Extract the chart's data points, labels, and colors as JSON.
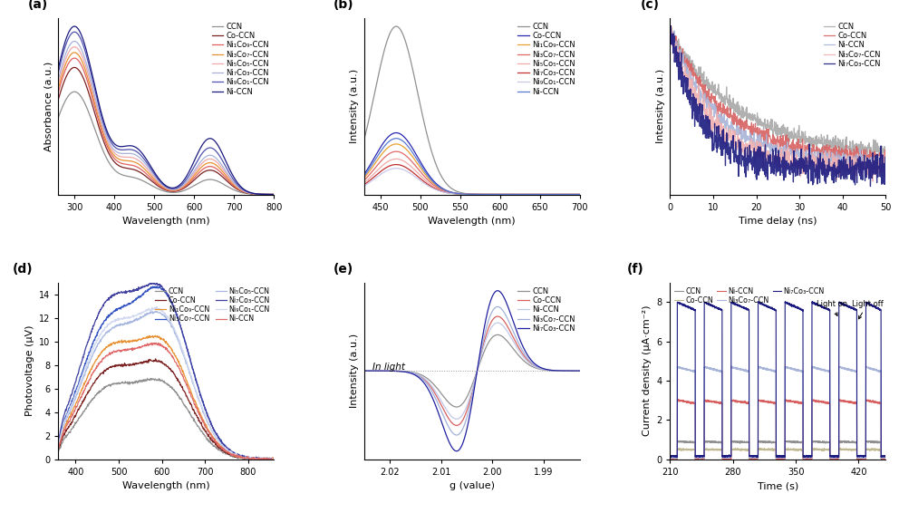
{
  "panel_labels": [
    "(a)",
    "(b)",
    "(c)",
    "(d)",
    "(e)",
    "(f)"
  ],
  "series_a": {
    "labels": [
      "CCN",
      "Co-CCN",
      "Ni₁Co₉-CCN",
      "Ni₃Co₇-CCN",
      "Ni₅Co₅-CCN",
      "Ni₇Co₃-CCN",
      "Ni₉Co₁-CCN",
      "Ni-CCN"
    ],
    "colors": [
      "#909090",
      "#7B2020",
      "#E06060",
      "#E89030",
      "#F0A8A8",
      "#A8B0D8",
      "#5050B0",
      "#1A1A80"
    ],
    "xlabel": "Wavelength (nm)",
    "ylabel": "Absorbance (a.u.)",
    "xlim": [
      260,
      800
    ],
    "xticks": [
      300,
      400,
      500,
      600,
      700,
      800
    ]
  },
  "series_b": {
    "labels": [
      "CCN",
      "Co-CCN",
      "Ni₁Co₉-CCN",
      "Ni₃Co₇-CCN",
      "Ni₅Co₅-CCN",
      "Ni₇Co₃-CCN",
      "Ni₉Co₁-CCN",
      "Ni-CCN"
    ],
    "colors": [
      "#909090",
      "#2828B0",
      "#E8A030",
      "#E06868",
      "#F0A8A8",
      "#C03030",
      "#C8C8E8",
      "#5878D0"
    ],
    "xlabel": "Wavelength (nm)",
    "ylabel": "Intensity (a.u.)",
    "xlim": [
      430,
      700
    ],
    "xticks": [
      450,
      500,
      550,
      600,
      650,
      700
    ]
  },
  "series_c": {
    "labels": [
      "CCN",
      "Co-CCN",
      "Ni-CCN",
      "Ni₃Co₇-CCN",
      "Ni₇Co₃-CCN"
    ],
    "colors": [
      "#A8A8A8",
      "#D86060",
      "#A8B4D8",
      "#F0B0B0",
      "#1A1A80"
    ],
    "xlabel": "Time delay (ns)",
    "ylabel": "Intensity (a.u.)",
    "xlim": [
      0,
      50
    ],
    "xticks": [
      0,
      10,
      20,
      30,
      40,
      50
    ]
  },
  "series_d": {
    "labels": [
      "CCN",
      "Co-CCN",
      "Ni₁Co₉-CCN",
      "Ni₃Co₇-CCN",
      "Ni₅Co₅-CCN",
      "Ni₇Co₃-CCN",
      "Ni₉Co₁-CCN",
      "Ni-CCN"
    ],
    "colors": [
      "#909090",
      "#7B2020",
      "#E89030",
      "#3050C0",
      "#A8B8E0",
      "#4040A0",
      "#D0D8F0",
      "#E06868"
    ],
    "xlabel": "Wavelength (nm)",
    "ylabel": "Photovoltage (μV)",
    "xlim": [
      360,
      860
    ],
    "ylim": [
      0,
      15
    ],
    "xticks": [
      400,
      500,
      600,
      700,
      800
    ],
    "yticks": [
      0,
      2,
      4,
      6,
      8,
      10,
      12,
      14
    ]
  },
  "series_e": {
    "labels": [
      "CCN",
      "Co-CCN",
      "Ni-CCN",
      "Ni₃Co₇-CCN",
      "Ni₇Co₃-CCN"
    ],
    "colors": [
      "#909090",
      "#D86060",
      "#C0C8E8",
      "#A0B0D8",
      "#2020A0"
    ],
    "xlabel": "g (value)",
    "ylabel": "Intensity (a.u.)",
    "annotation": "In light",
    "xticks": [
      2.02,
      2.01,
      2.0,
      1.99
    ],
    "xlim": [
      2.025,
      1.985
    ]
  },
  "series_f": {
    "labels": [
      "CCN",
      "Co-CCN",
      "Ni-CCN",
      "Ni₃Co₇-CCN",
      "Ni₇Co₃-CCN"
    ],
    "colors": [
      "#909090",
      "#C0B890",
      "#D86060",
      "#A8B4D8",
      "#1A1A80"
    ],
    "xlabel": "Time (s)",
    "ylabel": "Current density (μA·cm⁻²)",
    "xlim": [
      210,
      450
    ],
    "ylim": [
      0,
      9
    ],
    "xticks": [
      210,
      280,
      350,
      420
    ],
    "yticks": [
      0,
      2,
      4,
      6,
      8
    ],
    "light_on_label": "Light on",
    "light_off_label": "Light off",
    "base_vals": [
      0.9,
      0.5,
      3.0,
      4.7,
      8.0
    ],
    "dark_vals": [
      0.05,
      0.05,
      0.05,
      0.1,
      0.15
    ]
  }
}
